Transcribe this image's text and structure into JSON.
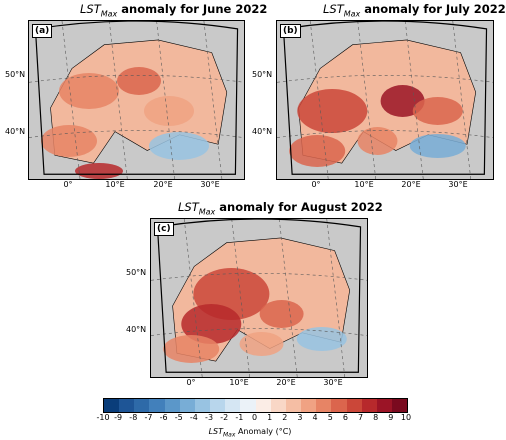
{
  "panels": [
    {
      "title_prefix": "LST",
      "title_sub": "Max",
      "title_suffix": " anomaly for June 2022",
      "label": "(a)",
      "lat_labels": [
        "50°N",
        "40°N"
      ],
      "lon_labels": [
        "0°",
        "10°E",
        "20°E",
        "30°E"
      ]
    },
    {
      "title_prefix": "LST",
      "title_sub": "Max",
      "title_suffix": " anomaly for July 2022",
      "label": "(b)",
      "lat_labels": [
        "50°N",
        "40°N"
      ],
      "lon_labels": [
        "0°",
        "10°E",
        "20°E",
        "30°E"
      ]
    },
    {
      "title_prefix": "LST",
      "title_sub": "Max",
      "title_suffix": " anomaly for August 2022",
      "label": "(c)",
      "lat_labels": [
        "50°N",
        "40°N"
      ],
      "lon_labels": [
        "0°",
        "10°E",
        "20°E",
        "30°E"
      ]
    }
  ],
  "colorbar": {
    "ticks": [
      "-10",
      "-9",
      "-8",
      "-7",
      "-6",
      "-5",
      "-4",
      "-3",
      "-2",
      "-1",
      "0",
      "1",
      "2",
      "3",
      "4",
      "5",
      "6",
      "7",
      "8",
      "9",
      "10"
    ],
    "colors": [
      "#0a3d7a",
      "#1e5596",
      "#2e6aa8",
      "#4280bb",
      "#5b97c9",
      "#78add6",
      "#98c3e2",
      "#b8d6ec",
      "#d5e6f3",
      "#ebf2f8",
      "#fbede6",
      "#f9d7c6",
      "#f5bea4",
      "#f0a283",
      "#e78465",
      "#db654d",
      "#cb4739",
      "#b7292c",
      "#9b1426",
      "#7a0a1f"
    ],
    "label_prefix": "LST",
    "label_sub": "Max",
    "label_suffix": " Anomaly (°C)"
  },
  "colors": {
    "land": "#f2b89d",
    "sea": "#c9c9c9",
    "border": "#000000",
    "grid": "#5a5a5a"
  }
}
